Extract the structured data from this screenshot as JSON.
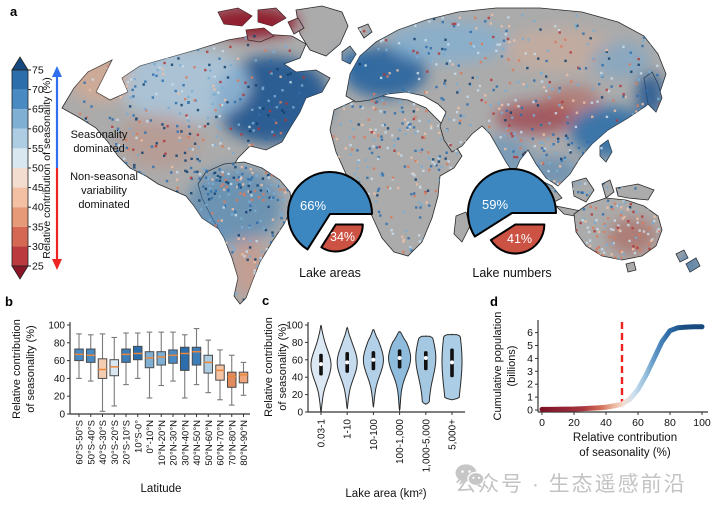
{
  "ui": {
    "panel_labels": {
      "a": "a",
      "b": "b",
      "c": "c",
      "d": "d"
    },
    "watermark": {
      "text": "公众号 · 生态遥感前沿",
      "icon": "wechat-icon"
    }
  },
  "chart_data": [
    {
      "id": "world-map",
      "type": "heatmap",
      "value_range": [
        25,
        75
      ],
      "colorbar": {
        "title": "Relative contribution of seasonality (%)",
        "ticks": [
          75,
          70,
          65,
          60,
          55,
          50,
          45,
          40,
          35,
          30,
          25
        ],
        "segment_colors": [
          "#2c6dab",
          "#4a8ac2",
          "#7fb0d4",
          "#aecde3",
          "#d8e7f0",
          "#f3ddd1",
          "#f3c0a4",
          "#e69a78",
          "#d46852",
          "#bb3a3d"
        ],
        "cap_top_color": "#16497e",
        "cap_bottom_color": "#8a1526"
      },
      "legend_arrows": {
        "up_label": [
          "Seasonality",
          "dominated"
        ],
        "down_label": [
          "Non-seasonal",
          "variability",
          "dominated"
        ],
        "up_color": "#2f6ff0",
        "down_color": "#ee2420"
      }
    },
    {
      "id": "pie-lake-areas",
      "type": "pie",
      "title": "Lake areas",
      "labels": [
        "66%",
        "34%"
      ],
      "values": [
        66,
        34
      ],
      "colors": [
        "#3c87c0",
        "#cc5244"
      ]
    },
    {
      "id": "pie-lake-numbers",
      "type": "pie",
      "title": "Lake numbers",
      "labels": [
        "59%",
        "41%"
      ],
      "values": [
        59,
        41
      ],
      "colors": [
        "#3c87c0",
        "#cc5244"
      ]
    },
    {
      "id": "boxplot-latitude",
      "type": "box",
      "ylabel_lines": [
        "Relative contribution",
        "of seasonality (%)"
      ],
      "xlabel": "Latitude",
      "ylim": [
        0,
        100
      ],
      "yticks": [
        0,
        20,
        40,
        60,
        80,
        100
      ],
      "stats_order": [
        "whisker_low",
        "q1",
        "median",
        "q3",
        "whisker_high"
      ],
      "categories": [
        "60°S-50°S",
        "50°S-40°S",
        "40°S-30°S",
        "30°S-20°S",
        "20°S-10°S",
        "10°S-0°",
        "0°-10°N",
        "10°N-20°N",
        "20°N-30°N",
        "30°N-40°N",
        "40°N-50°N",
        "50°N-60°N",
        "60°N-70°N",
        "70°N-80°N",
        "80°N-90°N"
      ],
      "stats": [
        [
          40,
          60,
          67,
          73,
          90
        ],
        [
          37,
          58,
          66,
          73,
          89
        ],
        [
          3,
          40,
          50,
          62,
          90
        ],
        [
          9,
          43,
          53,
          61,
          86
        ],
        [
          33,
          58,
          67,
          73,
          91
        ],
        [
          40,
          61,
          68,
          76,
          91
        ],
        [
          18,
          52,
          63,
          70,
          92
        ],
        [
          32,
          55,
          64,
          70,
          92
        ],
        [
          37,
          57,
          66,
          72,
          92
        ],
        [
          18,
          49,
          68,
          75,
          89
        ],
        [
          33,
          55,
          70,
          75,
          96
        ],
        [
          24,
          46,
          58,
          66,
          83
        ],
        [
          16,
          38,
          49,
          55,
          72
        ],
        [
          10,
          30,
          42,
          47,
          66
        ],
        [
          21,
          35,
          44,
          47,
          58
        ]
      ],
      "box_colors": [
        "#4a8ac2",
        "#4a8ac2",
        "#f5cdb2",
        "#d8e7f0",
        "#3d7db8",
        "#2c6dab",
        "#7fb0d4",
        "#7fb0d4",
        "#4a8ac2",
        "#2c6dab",
        "#3d7db8",
        "#aecde3",
        "#f5c4a4",
        "#e08a5e",
        "#efa67c"
      ],
      "median_color": "#e8873c"
    },
    {
      "id": "violin-lake-area",
      "type": "violin",
      "ylabel_lines": [
        "Relative contribution",
        "of seasonality (%)"
      ],
      "xlabel": "Lake area (km²)",
      "ylim": [
        0,
        100
      ],
      "yticks": [
        0,
        20,
        40,
        60,
        80,
        100
      ],
      "stats_order": [
        "min",
        "q1",
        "median",
        "q3",
        "max",
        "mode"
      ],
      "categories": [
        "0.03-1",
        "1-10",
        "10-100",
        "100-1,000",
        "1,000-5,000",
        "5,000+"
      ],
      "stats": [
        [
          0,
          42,
          55,
          67,
          100,
          54
        ],
        [
          4,
          45,
          57,
          69,
          97,
          57
        ],
        [
          6,
          48,
          60,
          70,
          95,
          60
        ],
        [
          2,
          50,
          62,
          72,
          93,
          62
        ],
        [
          9,
          48,
          62,
          70,
          88,
          62
        ],
        [
          14,
          40,
          57,
          73,
          90,
          58
        ]
      ],
      "violin_colors": [
        "#dce8f3",
        "#c6dbed",
        "#b2d0e7",
        "#8fbcdd",
        "#a5c8e2",
        "#abcde6"
      ]
    },
    {
      "id": "cumulative-population",
      "type": "line",
      "ylabel_lines": [
        "Cumulative population",
        "(billions)"
      ],
      "xlabel_lines": [
        "Relative contribution",
        "of seasonality (%)"
      ],
      "xlim": [
        0,
        100
      ],
      "ylim": [
        0,
        6.5
      ],
      "xticks": [
        0,
        20,
        40,
        60,
        80,
        100
      ],
      "yticks": [
        0,
        1,
        2,
        3,
        4,
        5,
        6
      ],
      "ref_line": {
        "x": 50,
        "color": "#ee2420",
        "style": "dashed"
      },
      "x": [
        0,
        5,
        10,
        15,
        20,
        25,
        30,
        35,
        40,
        45,
        50,
        55,
        60,
        65,
        70,
        75,
        80,
        85,
        90,
        95,
        100
      ],
      "y": [
        0.05,
        0.05,
        0.06,
        0.07,
        0.08,
        0.1,
        0.13,
        0.16,
        0.22,
        0.32,
        0.45,
        0.85,
        1.6,
        2.7,
        4.0,
        5.3,
        6.15,
        6.38,
        6.43,
        6.45,
        6.45
      ]
    }
  ]
}
